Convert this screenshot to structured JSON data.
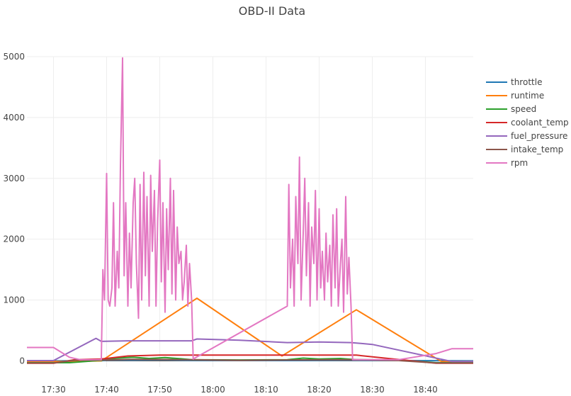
{
  "chart_data": {
    "type": "line",
    "title": "OBD-II Data",
    "xlabel": "",
    "ylabel": "",
    "x_unit": "time (HH:MM)",
    "xlim": [
      "17:25",
      "18:49"
    ],
    "ylim": [
      -100,
      5000
    ],
    "x_ticks": [
      "17:30",
      "17:40",
      "17:50",
      "18:00",
      "18:10",
      "18:20",
      "18:30",
      "18:40"
    ],
    "y_ticks": [
      0,
      1000,
      2000,
      3000,
      4000,
      5000
    ],
    "grid": true,
    "legend_position": "right",
    "series": [
      {
        "name": "throttle",
        "color": "#1f77b4",
        "points": [
          [
            "17:25",
            0
          ],
          [
            "17:39",
            0
          ],
          [
            "17:40",
            15
          ],
          [
            "17:45",
            12
          ],
          [
            "17:50",
            18
          ],
          [
            "17:56",
            10
          ],
          [
            "18:05",
            8
          ],
          [
            "18:14",
            5
          ],
          [
            "18:20",
            10
          ],
          [
            "18:26",
            12
          ],
          [
            "18:35",
            5
          ],
          [
            "18:49",
            0
          ]
        ]
      },
      {
        "name": "runtime",
        "color": "#ff7f0e",
        "points": [
          [
            "17:25",
            -10
          ],
          [
            "17:34",
            -10
          ],
          [
            "17:39",
            0
          ],
          [
            "17:57",
            1030
          ],
          [
            "18:13",
            80
          ],
          [
            "18:27",
            840
          ],
          [
            "18:43",
            -10
          ],
          [
            "18:49",
            -10
          ]
        ]
      },
      {
        "name": "speed",
        "color": "#2ca02c",
        "points": [
          [
            "17:25",
            -30
          ],
          [
            "17:33",
            -30
          ],
          [
            "17:39",
            10
          ],
          [
            "17:42",
            45
          ],
          [
            "17:45",
            60
          ],
          [
            "17:48",
            40
          ],
          [
            "17:51",
            55
          ],
          [
            "17:54",
            35
          ],
          [
            "17:56",
            20
          ],
          [
            "18:05",
            15
          ],
          [
            "18:14",
            20
          ],
          [
            "18:17",
            45
          ],
          [
            "18:20",
            30
          ],
          [
            "18:24",
            40
          ],
          [
            "18:27",
            20
          ],
          [
            "18:35",
            15
          ],
          [
            "18:42",
            -30
          ],
          [
            "18:49",
            -30
          ]
        ]
      },
      {
        "name": "coolant_temp",
        "color": "#d62728",
        "points": [
          [
            "17:25",
            -40
          ],
          [
            "17:30",
            -40
          ],
          [
            "17:34",
            20
          ],
          [
            "17:39",
            30
          ],
          [
            "17:44",
            80
          ],
          [
            "17:50",
            95
          ],
          [
            "18:00",
            95
          ],
          [
            "18:10",
            95
          ],
          [
            "18:20",
            95
          ],
          [
            "18:27",
            95
          ],
          [
            "18:33",
            40
          ],
          [
            "18:42",
            -40
          ],
          [
            "18:49",
            -40
          ]
        ]
      },
      {
        "name": "fuel_pressure",
        "color": "#9467bd",
        "points": [
          [
            "17:25",
            5
          ],
          [
            "17:30",
            5
          ],
          [
            "17:38",
            370
          ],
          [
            "17:39",
            320
          ],
          [
            "17:44",
            330
          ],
          [
            "17:50",
            330
          ],
          [
            "17:56",
            330
          ],
          [
            "17:57",
            360
          ],
          [
            "18:05",
            340
          ],
          [
            "18:14",
            300
          ],
          [
            "18:20",
            310
          ],
          [
            "18:26",
            300
          ],
          [
            "18:30",
            270
          ],
          [
            "18:45",
            -10
          ],
          [
            "18:49",
            -10
          ]
        ]
      },
      {
        "name": "intake_temp",
        "color": "#8c564b",
        "points": [
          [
            "17:25",
            -35
          ],
          [
            "17:30",
            -35
          ],
          [
            "17:34",
            10
          ],
          [
            "17:39",
            15
          ],
          [
            "17:45",
            25
          ],
          [
            "17:56",
            20
          ],
          [
            "18:05",
            10
          ],
          [
            "18:14",
            15
          ],
          [
            "18:22",
            20
          ],
          [
            "18:27",
            20
          ],
          [
            "18:35",
            5
          ],
          [
            "18:42",
            -35
          ],
          [
            "18:49",
            -35
          ]
        ]
      },
      {
        "name": "rpm",
        "color": "#e377c2",
        "points": [
          [
            "17:25",
            220
          ],
          [
            "17:30",
            220
          ],
          [
            "17:33",
            60
          ],
          [
            "17:35",
            20
          ],
          [
            "17:39",
            20
          ],
          [
            "17:39.3",
            1500
          ],
          [
            "17:39.6",
            1000
          ],
          [
            "17:40",
            3080
          ],
          [
            "17:40.3",
            1000
          ],
          [
            "17:40.6",
            900
          ],
          [
            "17:41",
            1200
          ],
          [
            "17:41.3",
            2600
          ],
          [
            "17:41.6",
            900
          ],
          [
            "17:42",
            1800
          ],
          [
            "17:42.3",
            1200
          ],
          [
            "17:42.6",
            3200
          ],
          [
            "17:43",
            4980
          ],
          [
            "17:43.3",
            1400
          ],
          [
            "17:43.6",
            2600
          ],
          [
            "17:44",
            900
          ],
          [
            "17:44.3",
            2100
          ],
          [
            "17:44.6",
            1200
          ],
          [
            "17:45",
            2600
          ],
          [
            "17:45.3",
            3000
          ],
          [
            "17:45.6",
            1600
          ],
          [
            "17:46",
            700
          ],
          [
            "17:46.3",
            2900
          ],
          [
            "17:46.6",
            1000
          ],
          [
            "17:47",
            3100
          ],
          [
            "17:47.3",
            1400
          ],
          [
            "17:47.6",
            2700
          ],
          [
            "17:48",
            900
          ],
          [
            "17:48.3",
            3050
          ],
          [
            "17:48.6",
            1800
          ],
          [
            "17:49",
            2800
          ],
          [
            "17:49.3",
            900
          ],
          [
            "17:49.6",
            2300
          ],
          [
            "17:50",
            3300
          ],
          [
            "17:50.3",
            1300
          ],
          [
            "17:50.6",
            2600
          ],
          [
            "17:51",
            800
          ],
          [
            "17:51.3",
            2500
          ],
          [
            "17:51.6",
            1500
          ],
          [
            "17:52",
            3000
          ],
          [
            "17:52.3",
            1100
          ],
          [
            "17:52.6",
            2800
          ],
          [
            "17:53",
            1000
          ],
          [
            "17:53.3",
            2200
          ],
          [
            "17:53.6",
            1600
          ],
          [
            "17:54",
            1800
          ],
          [
            "17:54.3",
            1000
          ],
          [
            "17:54.6",
            1300
          ],
          [
            "17:55",
            1900
          ],
          [
            "17:55.3",
            900
          ],
          [
            "17:55.6",
            1600
          ],
          [
            "17:56",
            1000
          ],
          [
            "17:56.3",
            30
          ],
          [
            "18:14",
            900
          ],
          [
            "18:14.3",
            2900
          ],
          [
            "18:14.6",
            1200
          ],
          [
            "18:15",
            2000
          ],
          [
            "18:15.3",
            900
          ],
          [
            "18:15.6",
            2700
          ],
          [
            "18:16",
            1600
          ],
          [
            "18:16.3",
            3350
          ],
          [
            "18:16.6",
            1000
          ],
          [
            "18:17",
            2100
          ],
          [
            "18:17.3",
            3000
          ],
          [
            "18:17.6",
            1400
          ],
          [
            "18:18",
            2600
          ],
          [
            "18:18.3",
            900
          ],
          [
            "18:18.6",
            2200
          ],
          [
            "18:19",
            1600
          ],
          [
            "18:19.3",
            2800
          ],
          [
            "18:19.6",
            1000
          ],
          [
            "18:20",
            2500
          ],
          [
            "18:20.3",
            1200
          ],
          [
            "18:20.6",
            1800
          ],
          [
            "18:21",
            1000
          ],
          [
            "18:21.3",
            2100
          ],
          [
            "18:21.6",
            1300
          ],
          [
            "18:22",
            1900
          ],
          [
            "18:22.3",
            900
          ],
          [
            "18:22.6",
            2400
          ],
          [
            "18:23",
            1200
          ],
          [
            "18:23.3",
            2500
          ],
          [
            "18:23.6",
            900
          ],
          [
            "18:24",
            1600
          ],
          [
            "18:24.3",
            2000
          ],
          [
            "18:24.6",
            800
          ],
          [
            "18:25",
            2700
          ],
          [
            "18:25.3",
            1100
          ],
          [
            "18:25.6",
            1700
          ],
          [
            "18:26",
            900
          ],
          [
            "18:26.3",
            20
          ],
          [
            "18:35",
            20
          ],
          [
            "18:42",
            120
          ],
          [
            "18:45",
            200
          ],
          [
            "18:49",
            200
          ]
        ]
      }
    ]
  }
}
